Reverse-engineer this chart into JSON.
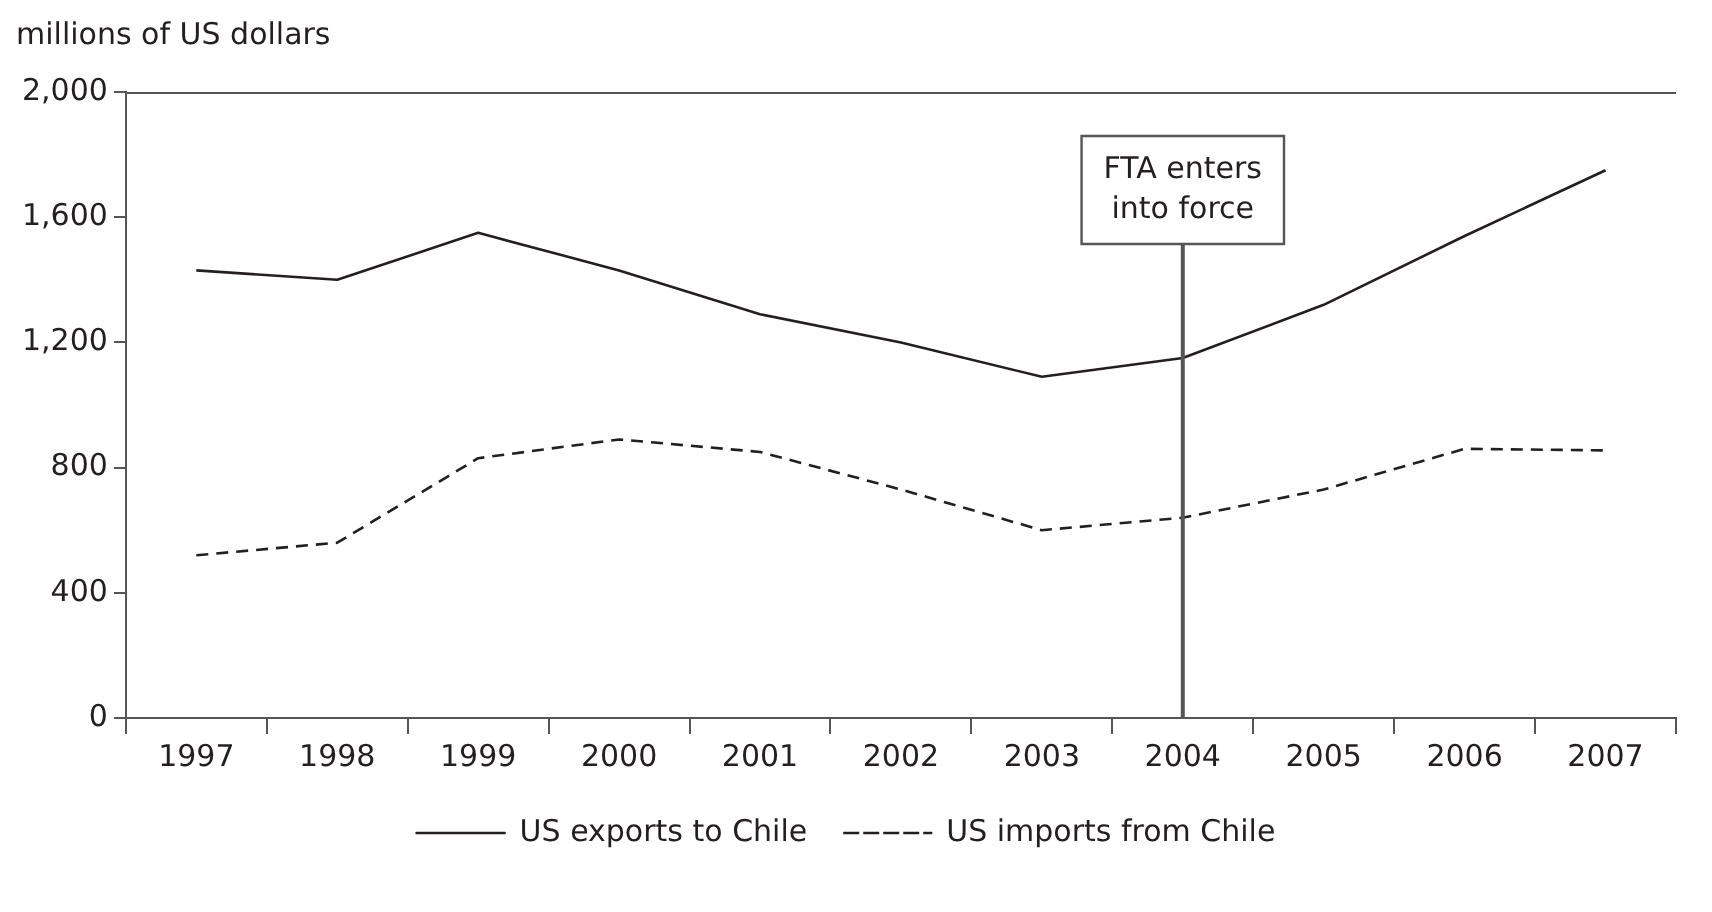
{
  "chart_data": {
    "type": "line",
    "ylabel": "millions of US dollars",
    "categories": [
      "1997",
      "1998",
      "1999",
      "2000",
      "2001",
      "2002",
      "2003",
      "2004",
      "2005",
      "2006",
      "2007"
    ],
    "series": [
      {
        "name": "US exports to Chile",
        "color": "#231f20",
        "line_style": "solid",
        "values": [
          1430,
          1400,
          1550,
          1430,
          1290,
          1200,
          1090,
          1150,
          1320,
          1540,
          1750
        ]
      },
      {
        "name": "US imports from Chile",
        "color": "#231f20",
        "line_style": "dashed",
        "values": [
          520,
          560,
          830,
          890,
          850,
          730,
          600,
          640,
          730,
          860,
          855
        ]
      }
    ],
    "ylim": [
      0,
      2000
    ],
    "yticks": [
      {
        "value": 0,
        "label": "0"
      },
      {
        "value": 400,
        "label": "400"
      },
      {
        "value": 800,
        "label": "800"
      },
      {
        "value": 1200,
        "label": "1,200"
      },
      {
        "value": 1600,
        "label": "1,600"
      },
      {
        "value": 2000,
        "label": "2,000"
      }
    ],
    "ref_lines": [
      {
        "axis": "x",
        "value": "2004",
        "label": "FTA enters into force",
        "color": "#555555"
      }
    ],
    "grid": false,
    "legend": "bottom",
    "marker": "none"
  }
}
